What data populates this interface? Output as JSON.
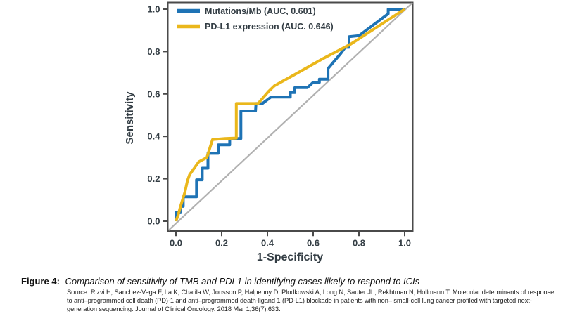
{
  "figure": {
    "caption_label": "Figure 4:",
    "caption_text": "Comparison of sensitivity of TMB and PDL1 in identifying cases likely to respond to ICIs",
    "source_lines": [
      "Source: Rizvi H, Sanchez-Vega F, La K, Chatila W, Jonsson P, Halpenny D, Plodkowski A, Long N, Sauter JL, Rekhtman N, Hollmann T. Molecular determinants of response",
      "to anti–programmed cell death (PD)-1 and anti–programmed death-ligand 1 (PD-L1) blockade in patients with non– small-cell lung cancer profiled with targeted next-",
      "generation sequencing. Journal of Clinical Oncology. 2018 Mar 1;36(7):633."
    ]
  },
  "chart_data": {
    "type": "line",
    "subtype": "roc-curve",
    "title": "",
    "xlabel": "1-Specificity",
    "ylabel": "Sensitivity",
    "xlim": [
      0,
      1
    ],
    "ylim": [
      0,
      1
    ],
    "x_tick_labels": [
      "0.0",
      "0.2",
      "0.4",
      "0.6",
      "0.8",
      "1.0"
    ],
    "y_tick_labels": [
      "0.0",
      "0.2",
      "0.4",
      "0.6",
      "0.8",
      "1.0"
    ],
    "grid": false,
    "legend_position": "top-left-inside",
    "colors": {
      "frame": "#4a4a4a",
      "text": "#333d44",
      "reference_diagonal": "#b1b1b1"
    },
    "reference_line": {
      "name": "chance-diagonal",
      "from": [
        0,
        0
      ],
      "to": [
        1,
        1
      ]
    },
    "series": [
      {
        "key": "mutations-mb",
        "name": "Mutations/Mb (AUC, 0.601)",
        "auc": 0.601,
        "color": "#1e73b5",
        "points": [
          [
            0,
            0
          ],
          [
            0,
            0.04
          ],
          [
            0.02,
            0.04
          ],
          [
            0.02,
            0.07
          ],
          [
            0.032,
            0.07
          ],
          [
            0.032,
            0.115
          ],
          [
            0.09,
            0.115
          ],
          [
            0.09,
            0.195
          ],
          [
            0.115,
            0.195
          ],
          [
            0.115,
            0.25
          ],
          [
            0.14,
            0.25
          ],
          [
            0.14,
            0.32
          ],
          [
            0.185,
            0.32
          ],
          [
            0.185,
            0.36
          ],
          [
            0.235,
            0.36
          ],
          [
            0.235,
            0.39
          ],
          [
            0.284,
            0.39
          ],
          [
            0.284,
            0.52
          ],
          [
            0.348,
            0.52
          ],
          [
            0.35,
            0.555
          ],
          [
            0.378,
            0.555
          ],
          [
            0.415,
            0.585
          ],
          [
            0.5,
            0.585
          ],
          [
            0.5,
            0.607
          ],
          [
            0.52,
            0.607
          ],
          [
            0.52,
            0.63
          ],
          [
            0.575,
            0.63
          ],
          [
            0.6,
            0.655
          ],
          [
            0.627,
            0.655
          ],
          [
            0.627,
            0.67
          ],
          [
            0.665,
            0.67
          ],
          [
            0.665,
            0.72
          ],
          [
            0.72,
            0.79
          ],
          [
            0.74,
            0.82
          ],
          [
            0.757,
            0.82
          ],
          [
            0.757,
            0.87
          ],
          [
            0.8,
            0.875
          ],
          [
            0.928,
            0.978
          ],
          [
            0.928,
            1
          ],
          [
            1,
            1
          ]
        ]
      },
      {
        "key": "pdl1-expression",
        "name": "PD-L1 expression (AUC. 0.646)",
        "auc": 0.646,
        "color": "#eab71b",
        "points": [
          [
            0,
            0
          ],
          [
            0.01,
            0.03
          ],
          [
            0.02,
            0.07
          ],
          [
            0.04,
            0.14
          ],
          [
            0.05,
            0.19
          ],
          [
            0.06,
            0.22
          ],
          [
            0.08,
            0.25
          ],
          [
            0.1,
            0.28
          ],
          [
            0.135,
            0.3
          ],
          [
            0.16,
            0.385
          ],
          [
            0.215,
            0.39
          ],
          [
            0.264,
            0.392
          ],
          [
            0.264,
            0.555
          ],
          [
            0.359,
            0.555
          ],
          [
            0.405,
            0.612
          ],
          [
            0.43,
            0.638
          ],
          [
            0.5,
            0.68
          ],
          [
            0.64,
            0.765
          ],
          [
            0.764,
            0.835
          ],
          [
            1,
            1
          ]
        ]
      }
    ]
  }
}
